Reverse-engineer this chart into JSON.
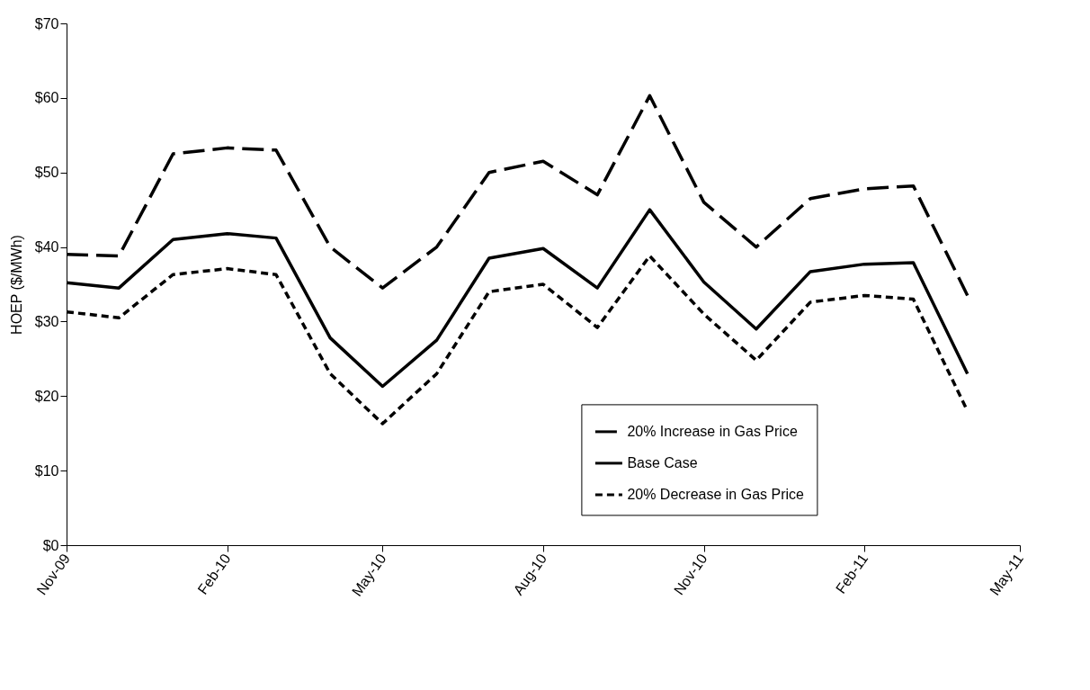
{
  "chart_data": {
    "type": "line",
    "ylabel": "HOEP ($/MWh)",
    "x": [
      "2009-11",
      "2009-12",
      "2010-01",
      "2010-02",
      "2010-03",
      "2010-04",
      "2010-05",
      "2010-06",
      "2010-07",
      "2010-08",
      "2010-09",
      "2010-10",
      "2010-11",
      "2010-12",
      "2011-01",
      "2011-02",
      "2011-03",
      "2011-04"
    ],
    "series": [
      {
        "name": "20% Increase in Gas Price",
        "color": "#000000",
        "line_style": "dashed",
        "values": [
          39,
          38.8,
          52.5,
          53.3,
          53,
          40,
          34.5,
          40,
          50,
          51.5,
          47,
          60.3,
          46,
          40,
          46.5,
          47.8,
          48.2,
          33.5
        ]
      },
      {
        "name": "Base Case",
        "color": "#000000",
        "line_style": "solid",
        "values": [
          35.2,
          34.5,
          41,
          41.8,
          41.2,
          27.8,
          21.3,
          27.5,
          38.5,
          39.8,
          34.5,
          45,
          35.3,
          29,
          36.7,
          37.7,
          37.9,
          23
        ]
      },
      {
        "name": "20% Decrease in Gas Price",
        "color": "#000000",
        "line_style": "dotted",
        "values": [
          31.3,
          30.5,
          36.3,
          37.1,
          36.3,
          23,
          16.3,
          23,
          34,
          35,
          29.2,
          38.8,
          31,
          24.8,
          32.6,
          33.5,
          33,
          18
        ]
      }
    ],
    "xlim": [
      "2009-11",
      "2011-05"
    ],
    "xticks": [
      {
        "value": "2009-11",
        "label": "Nov-09"
      },
      {
        "value": "2010-02",
        "label": "Feb-10"
      },
      {
        "value": "2010-05",
        "label": "May-10"
      },
      {
        "value": "2010-08",
        "label": "Aug-10"
      },
      {
        "value": "2010-11",
        "label": "Nov-10"
      },
      {
        "value": "2011-02",
        "label": "Feb-11"
      },
      {
        "value": "2011-05",
        "label": "May-11"
      }
    ],
    "ylim": [
      0,
      70
    ],
    "yticks": [
      {
        "value": 0,
        "label": "$0"
      },
      {
        "value": 10,
        "label": "$10"
      },
      {
        "value": 20,
        "label": "$20"
      },
      {
        "value": 30,
        "label": "$30"
      },
      {
        "value": 40,
        "label": "$40"
      },
      {
        "value": 50,
        "label": "$50"
      },
      {
        "value": 60,
        "label": "$60"
      },
      {
        "value": 70,
        "label": "$70"
      }
    ],
    "grid": false,
    "legend": "bottom right",
    "marker": "none"
  }
}
